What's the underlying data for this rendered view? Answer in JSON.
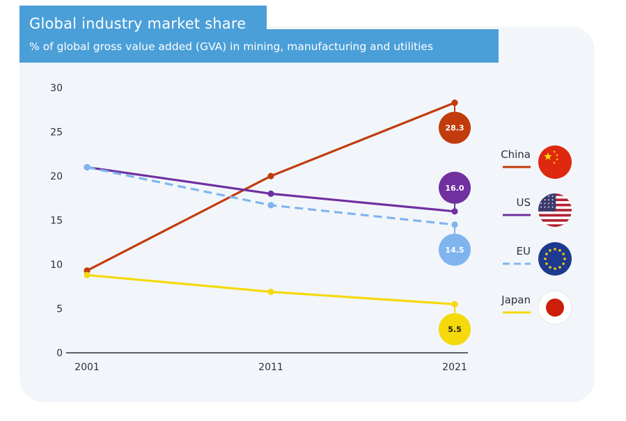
{
  "header": {
    "title": "Global industry market share",
    "subtitle": "% of global gross value added (GVA) in mining, manufacturing and utilities"
  },
  "chart_data": {
    "type": "line",
    "title": "Global industry market share",
    "subtitle": "% of global gross value added (GVA) in mining, manufacturing and utilities",
    "x": [
      "2001",
      "2011",
      "2021"
    ],
    "ylim": [
      0,
      30
    ],
    "yticks": [
      0,
      5,
      10,
      15,
      20,
      25,
      30
    ],
    "grid": false,
    "legend_position": "right",
    "series": [
      {
        "name": "China",
        "values": [
          9.3,
          20.0,
          28.3
        ],
        "color": "#c23b0c",
        "dashed": false,
        "end_label": "28.3",
        "icon": "china-flag-icon"
      },
      {
        "name": "US",
        "values": [
          21.0,
          18.0,
          16.0
        ],
        "color": "#7030a0",
        "dashed": false,
        "end_label": "16.0",
        "icon": "us-flag-icon"
      },
      {
        "name": "EU",
        "values": [
          21.0,
          16.7,
          14.5
        ],
        "color": "#7fb4ee",
        "dashed": true,
        "end_label": "14.5",
        "icon": "eu-flag-icon"
      },
      {
        "name": "Japan",
        "values": [
          8.8,
          6.9,
          5.5
        ],
        "color": "#f5d90a",
        "dashed": false,
        "end_label": "5.5",
        "icon": "japan-flag-icon"
      }
    ]
  }
}
